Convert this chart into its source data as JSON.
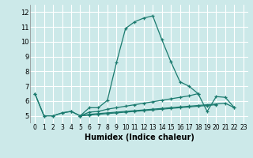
{
  "xlabel": "Humidex (Indice chaleur)",
  "xlim": [
    -0.5,
    23.5
  ],
  "ylim": [
    4.5,
    12.5
  ],
  "yticks": [
    5,
    6,
    7,
    8,
    9,
    10,
    11,
    12
  ],
  "xticks": [
    0,
    1,
    2,
    3,
    4,
    5,
    6,
    7,
    8,
    9,
    10,
    11,
    12,
    13,
    14,
    15,
    16,
    17,
    18,
    19,
    20,
    21,
    22,
    23
  ],
  "bg_color": "#cce9e9",
  "line_color": "#1a7a6e",
  "grid_color": "#ffffff",
  "series": [
    {
      "x": [
        0,
        1,
        2,
        3,
        4,
        5,
        6,
        7,
        8,
        9,
        10,
        11,
        12,
        13,
        14,
        15,
        16,
        17,
        18,
        19,
        20,
        21,
        22
      ],
      "y": [
        6.5,
        5.0,
        5.0,
        5.2,
        5.3,
        5.0,
        5.55,
        5.55,
        6.05,
        8.6,
        10.9,
        11.35,
        11.6,
        11.75,
        10.15,
        8.65,
        7.3,
        7.0,
        6.5,
        5.3,
        6.3,
        6.25,
        5.55
      ]
    },
    {
      "x": [
        0,
        1,
        2,
        3,
        4,
        5,
        6,
        7,
        8,
        9,
        10,
        11,
        12,
        13,
        14,
        15,
        16,
        17,
        18
      ],
      "y": [
        6.5,
        5.0,
        5.0,
        5.2,
        5.3,
        5.0,
        5.25,
        5.3,
        5.45,
        5.55,
        5.65,
        5.75,
        5.85,
        5.95,
        6.05,
        6.15,
        6.25,
        6.35,
        6.5
      ]
    },
    {
      "x": [
        5,
        6,
        7,
        8,
        9,
        10,
        11,
        12,
        13,
        14,
        15,
        16,
        17,
        18,
        19,
        20,
        21,
        22
      ],
      "y": [
        5.0,
        5.1,
        5.15,
        5.2,
        5.25,
        5.3,
        5.35,
        5.4,
        5.45,
        5.5,
        5.55,
        5.6,
        5.65,
        5.7,
        5.75,
        5.8,
        5.85,
        5.55
      ]
    },
    {
      "x": [
        5,
        6,
        7,
        8,
        9,
        10,
        11,
        12,
        13,
        14,
        15,
        16,
        17,
        18,
        19,
        20
      ],
      "y": [
        5.0,
        5.05,
        5.1,
        5.15,
        5.2,
        5.25,
        5.3,
        5.35,
        5.4,
        5.45,
        5.5,
        5.55,
        5.6,
        5.65,
        5.7,
        5.75
      ]
    }
  ]
}
